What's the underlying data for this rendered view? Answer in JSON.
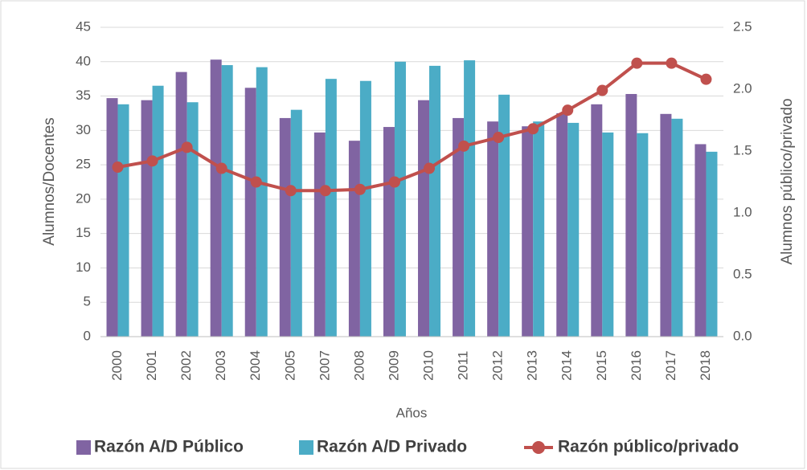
{
  "chart_data": {
    "type": "bar-line",
    "categories": [
      "2000",
      "2001",
      "2002",
      "2003",
      "2004",
      "2005",
      "2007",
      "2008",
      "2009",
      "2010",
      "2011",
      "2012",
      "2013",
      "2014",
      "2015",
      "2016",
      "2017",
      "2018"
    ],
    "series": [
      {
        "name": "Razón A/D Público",
        "color": "#8064a2",
        "values": [
          34.7,
          34.4,
          38.5,
          40.3,
          36.2,
          31.8,
          29.7,
          28.5,
          30.5,
          34.4,
          31.8,
          31.3,
          30.6,
          32.5,
          33.8,
          35.3,
          32.4,
          28.0
        ]
      },
      {
        "name": "Razón A/D Privado",
        "color": "#4bacc6",
        "values": [
          33.8,
          36.5,
          34.1,
          39.5,
          39.2,
          33.0,
          37.5,
          37.2,
          40.0,
          39.4,
          40.2,
          35.2,
          31.3,
          31.1,
          29.7,
          29.6,
          31.7,
          26.9
        ]
      },
      {
        "name": "Razón público/privado",
        "color": "#c0504d",
        "axis": "y2",
        "values": [
          1.37,
          1.42,
          1.53,
          1.36,
          1.25,
          1.18,
          1.18,
          1.19,
          1.25,
          1.36,
          1.54,
          1.61,
          1.68,
          1.83,
          1.99,
          2.21,
          2.21,
          2.08
        ]
      }
    ],
    "xlabel": "Años",
    "ylabel": "Alumnos/Docentes",
    "y2label": "Alumnos público/privado",
    "ylim": [
      0,
      45
    ],
    "yticks": [
      0,
      5,
      10,
      15,
      20,
      25,
      30,
      35,
      40,
      45
    ],
    "y2lim": [
      0,
      2.5
    ],
    "y2ticks": [
      {
        "value": 0,
        "label": "0.0"
      },
      {
        "value": 0.5,
        "label": "0.5"
      },
      {
        "value": 1,
        "label": "1.0"
      },
      {
        "value": 1.5,
        "label": "1.5"
      },
      {
        "value": 2,
        "label": "2.0"
      },
      {
        "value": 2.5,
        "label": "2.5"
      }
    ],
    "grid": true,
    "legend": "bottom"
  }
}
